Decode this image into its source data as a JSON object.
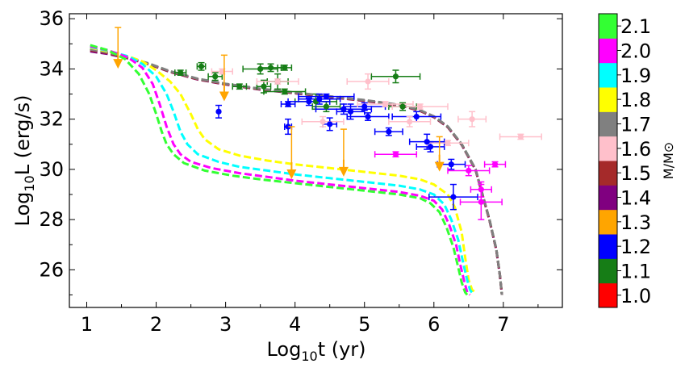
{
  "chart_data": {
    "type": "scatter",
    "xlabel_main": "Log",
    "xlabel_sub": "10",
    "xlabel_rest": "t (yr)",
    "ylabel_main": "Log",
    "ylabel_sub": "10",
    "ylabel_rest": "L (erg/s)",
    "xlim": [
      0.75,
      7.85
    ],
    "ylim": [
      24.5,
      36.2
    ],
    "xticks": [
      1,
      2,
      3,
      4,
      5,
      6,
      7
    ],
    "yticks": [
      26,
      28,
      30,
      32,
      34,
      36
    ],
    "colorbar": {
      "title": "M/M⊙",
      "levels": [
        {
          "value": "1.0",
          "color": "#ff0000"
        },
        {
          "value": "1.1",
          "color": "#167d16"
        },
        {
          "value": "1.2",
          "color": "#0000ff"
        },
        {
          "value": "1.3",
          "color": "#ffa500"
        },
        {
          "value": "1.4",
          "color": "#800080"
        },
        {
          "value": "1.5",
          "color": "#a52a2a"
        },
        {
          "value": "1.6",
          "color": "#ffc0cb"
        },
        {
          "value": "1.7",
          "color": "#808080"
        },
        {
          "value": "1.8",
          "color": "#ffff00"
        },
        {
          "value": "1.9",
          "color": "#00ffff"
        },
        {
          "value": "2.0",
          "color": "#ff00ff"
        },
        {
          "value": "2.1",
          "color": "#33ff33"
        }
      ]
    },
    "curves": [
      {
        "mass": "1.1",
        "color": "#167d16",
        "x": [
          1.05,
          1.3,
          1.6,
          1.9,
          2.2,
          2.6,
          3.0,
          3.5,
          4.0,
          4.5,
          5.0,
          5.4,
          5.6,
          5.8,
          6.0,
          6.2,
          6.4,
          6.6,
          6.7,
          6.8,
          6.9,
          6.95,
          6.98
        ],
        "y": [
          34.8,
          34.65,
          34.45,
          34.2,
          33.9,
          33.6,
          33.4,
          33.2,
          33.05,
          32.9,
          32.75,
          32.6,
          32.5,
          32.35,
          32.1,
          31.7,
          31.0,
          30.0,
          29.0,
          28.0,
          26.8,
          25.8,
          25.0
        ]
      },
      {
        "mass": "1.4",
        "color": "#800080",
        "x": [
          1.05,
          1.3,
          1.6,
          1.9,
          2.2,
          2.6,
          3.0,
          3.5,
          4.0,
          4.5,
          5.0,
          5.4,
          5.6,
          5.8,
          6.0,
          6.2,
          6.4,
          6.6,
          6.7,
          6.8,
          6.9,
          6.95,
          6.98
        ],
        "y": [
          34.7,
          34.6,
          34.42,
          34.18,
          33.88,
          33.58,
          33.38,
          33.18,
          33.03,
          32.88,
          32.73,
          32.58,
          32.48,
          32.33,
          32.08,
          31.68,
          30.98,
          29.98,
          28.98,
          27.98,
          26.78,
          25.8,
          25.0
        ]
      },
      {
        "mass": "1.5",
        "color": "#a52a2a",
        "x": [
          1.05,
          1.3,
          1.6,
          1.9,
          2.2,
          2.6,
          3.0,
          3.5,
          4.0,
          4.5,
          5.0,
          5.4,
          5.6,
          5.8,
          6.0,
          6.2,
          6.4,
          6.6,
          6.7,
          6.8,
          6.9,
          6.95,
          6.98
        ],
        "y": [
          34.75,
          34.63,
          34.44,
          34.19,
          33.89,
          33.59,
          33.39,
          33.19,
          33.04,
          32.89,
          32.74,
          32.59,
          32.49,
          32.34,
          32.09,
          31.69,
          30.99,
          29.99,
          28.99,
          27.99,
          26.79,
          25.8,
          25.0
        ]
      },
      {
        "mass": "1.7",
        "color": "#808080",
        "x": [
          1.05,
          1.3,
          1.6,
          1.9,
          2.2,
          2.6,
          3.0,
          3.5,
          4.0,
          4.5,
          5.0,
          5.4,
          5.6,
          5.8,
          6.0,
          6.2,
          6.4,
          6.6,
          6.7,
          6.8,
          6.9,
          6.95,
          6.98
        ],
        "y": [
          34.78,
          34.66,
          34.46,
          34.21,
          33.91,
          33.61,
          33.41,
          33.21,
          33.06,
          32.91,
          32.76,
          32.61,
          32.51,
          32.36,
          32.11,
          31.71,
          31.01,
          30.01,
          29.01,
          28.01,
          26.81,
          25.8,
          25.0
        ]
      },
      {
        "mass": "1.8",
        "color": "#ffff00",
        "x": [
          1.05,
          1.3,
          1.6,
          1.8,
          2.0,
          2.2,
          2.35,
          2.5,
          2.6,
          2.7,
          2.9,
          3.2,
          3.6,
          4.0,
          4.5,
          5.0,
          5.5,
          5.8,
          6.0,
          6.2,
          6.3,
          6.4,
          6.45,
          6.5,
          6.55,
          6.6
        ],
        "y": [
          34.85,
          34.7,
          34.5,
          34.3,
          33.95,
          33.5,
          33.0,
          32.2,
          31.6,
          31.2,
          30.8,
          30.55,
          30.35,
          30.2,
          30.05,
          29.9,
          29.75,
          29.6,
          29.4,
          29.0,
          28.5,
          27.5,
          26.5,
          25.6,
          25.2,
          25.1
        ]
      },
      {
        "mass": "1.9",
        "color": "#00ffff",
        "x": [
          1.05,
          1.3,
          1.6,
          1.8,
          2.0,
          2.15,
          2.25,
          2.35,
          2.45,
          2.6,
          2.9,
          3.2,
          3.6,
          4.0,
          4.5,
          5.0,
          5.5,
          5.8,
          6.0,
          6.15,
          6.25,
          6.35,
          6.42,
          6.47,
          6.52,
          6.56
        ],
        "y": [
          34.88,
          34.73,
          34.5,
          34.2,
          33.7,
          33.0,
          32.3,
          31.5,
          31.0,
          30.6,
          30.3,
          30.1,
          29.95,
          29.8,
          29.65,
          29.5,
          29.35,
          29.2,
          29.0,
          28.6,
          28.0,
          27.2,
          26.3,
          25.7,
          25.2,
          25.05
        ]
      },
      {
        "mass": "2.0",
        "color": "#ff00ff",
        "x": [
          1.05,
          1.3,
          1.6,
          1.8,
          1.95,
          2.05,
          2.15,
          2.25,
          2.35,
          2.5,
          2.8,
          3.2,
          3.6,
          4.0,
          4.5,
          5.0,
          5.5,
          5.8,
          6.0,
          6.12,
          6.22,
          6.32,
          6.38,
          6.44,
          6.48,
          6.52
        ],
        "y": [
          34.9,
          34.75,
          34.45,
          34.05,
          33.4,
          32.6,
          31.7,
          31.0,
          30.6,
          30.3,
          30.05,
          29.85,
          29.7,
          29.55,
          29.4,
          29.25,
          29.1,
          28.95,
          28.75,
          28.4,
          27.8,
          27.0,
          26.2,
          25.5,
          25.1,
          25.0
        ]
      },
      {
        "mass": "2.1",
        "color": "#33ff33",
        "x": [
          1.05,
          1.3,
          1.55,
          1.75,
          1.9,
          2.0,
          2.08,
          2.15,
          2.25,
          2.4,
          2.7,
          3.1,
          3.5,
          4.0,
          4.5,
          5.0,
          5.5,
          5.8,
          5.95,
          6.08,
          6.18,
          6.28,
          6.35,
          6.4,
          6.45,
          6.48
        ],
        "y": [
          34.95,
          34.75,
          34.4,
          33.8,
          33.0,
          32.2,
          31.5,
          31.0,
          30.6,
          30.25,
          29.95,
          29.75,
          29.6,
          29.45,
          29.3,
          29.15,
          29.0,
          28.85,
          28.65,
          28.3,
          27.7,
          26.9,
          26.1,
          25.5,
          25.1,
          25.0
        ]
      }
    ],
    "upper_limits": [
      {
        "x": 1.45,
        "y": 34.3,
        "color": "#ffa500"
      },
      {
        "x": 2.98,
        "y": 33.0,
        "color": "#ffa500"
      },
      {
        "x": 3.95,
        "y": 29.9,
        "color": "#ffa500"
      },
      {
        "x": 4.7,
        "y": 30.0,
        "color": "#ffa500"
      },
      {
        "x": 6.08,
        "y": 30.2,
        "color": "#ffa500"
      }
    ],
    "upper_limit_whiskers": [
      {
        "x": 1.45,
        "y_top": 35.65,
        "y_bottom": 34.5
      },
      {
        "x": 2.98,
        "y_top": 34.55,
        "y_bottom": 33.25
      },
      {
        "x": 3.95,
        "y_top": 31.7,
        "y_bottom": 30.2
      },
      {
        "x": 4.7,
        "y_top": 31.6,
        "y_bottom": 30.3
      },
      {
        "x": 6.08,
        "y_top": 31.3,
        "y_bottom": 30.5
      }
    ],
    "points": [
      {
        "x": 2.35,
        "y": 33.85,
        "xerr": 0.08,
        "yerr": 0.1,
        "color": "#167d16"
      },
      {
        "x": 2.65,
        "y": 34.1,
        "xerr": 0.06,
        "yerr": 0.15,
        "color": "#167d16"
      },
      {
        "x": 2.85,
        "y": 33.7,
        "xerr": 0.1,
        "yerr": 0.15,
        "color": "#167d16"
      },
      {
        "x": 3.2,
        "y": 33.3,
        "xerr": 0.1,
        "yerr": 0.1,
        "color": "#167d16"
      },
      {
        "x": 3.5,
        "y": 34.0,
        "xerr": 0.25,
        "yerr": 0.2,
        "color": "#167d16"
      },
      {
        "x": 3.55,
        "y": 33.3,
        "xerr": 0.1,
        "yerr": 0.25,
        "color": "#167d16"
      },
      {
        "x": 3.65,
        "y": 34.05,
        "xerr": 0.15,
        "yerr": 0.15,
        "color": "#167d16"
      },
      {
        "x": 3.75,
        "y": 33.5,
        "xerr": 0.15,
        "yerr": 0.3,
        "color": "#167d16"
      },
      {
        "x": 3.85,
        "y": 34.05,
        "xerr": 0.1,
        "yerr": 0.1,
        "color": "#167d16"
      },
      {
        "x": 3.85,
        "y": 33.1,
        "xerr": 0.3,
        "yerr": 0.1,
        "color": "#167d16"
      },
      {
        "x": 4.3,
        "y": 32.7,
        "xerr": 0.3,
        "yerr": 0.3,
        "color": "#167d16"
      },
      {
        "x": 4.45,
        "y": 32.5,
        "xerr": 0.2,
        "yerr": 0.2,
        "color": "#167d16"
      },
      {
        "x": 5.45,
        "y": 33.7,
        "xerr": 0.35,
        "yerr": 0.25,
        "color": "#167d16"
      },
      {
        "x": 5.55,
        "y": 32.5,
        "xerr": 0.2,
        "yerr": 0.15,
        "color": "#167d16"
      },
      {
        "x": 2.9,
        "y": 32.3,
        "xerr": 0.0,
        "yerr": 0.25,
        "color": "#0000ff"
      },
      {
        "x": 3.9,
        "y": 32.6,
        "xerr": 0.1,
        "yerr": 0.1,
        "color": "#0000ff"
      },
      {
        "x": 3.9,
        "y": 31.7,
        "xerr": 0.05,
        "yerr": 0.3,
        "color": "#0000ff"
      },
      {
        "x": 4.2,
        "y": 32.7,
        "xerr": 0.3,
        "yerr": 0.15,
        "color": "#0000ff"
      },
      {
        "x": 4.35,
        "y": 32.8,
        "xerr": 0.3,
        "yerr": 0.2,
        "color": "#0000ff"
      },
      {
        "x": 4.45,
        "y": 32.9,
        "xerr": 0.4,
        "yerr": 0.1,
        "color": "#0000ff"
      },
      {
        "x": 4.5,
        "y": 31.8,
        "xerr": 0.1,
        "yerr": 0.25,
        "color": "#0000ff"
      },
      {
        "x": 4.7,
        "y": 32.4,
        "xerr": 0.4,
        "yerr": 0.2,
        "color": "#0000ff"
      },
      {
        "x": 4.8,
        "y": 32.3,
        "xerr": 0.2,
        "yerr": 0.3,
        "color": "#0000ff"
      },
      {
        "x": 5.05,
        "y": 32.1,
        "xerr": 0.3,
        "yerr": 0.15,
        "color": "#0000ff"
      },
      {
        "x": 5.0,
        "y": 32.5,
        "xerr": 0.3,
        "yerr": 0.15,
        "color": "#0000ff"
      },
      {
        "x": 5.35,
        "y": 31.5,
        "xerr": 0.2,
        "yerr": 0.15,
        "color": "#0000ff"
      },
      {
        "x": 5.75,
        "y": 32.1,
        "xerr": 0.35,
        "yerr": 0.2,
        "color": "#0000ff"
      },
      {
        "x": 5.9,
        "y": 31.1,
        "xerr": 0.25,
        "yerr": 0.3,
        "color": "#0000ff"
      },
      {
        "x": 5.95,
        "y": 30.9,
        "xerr": 0.2,
        "yerr": 0.2,
        "color": "#0000ff"
      },
      {
        "x": 6.25,
        "y": 30.2,
        "xerr": 0.2,
        "yerr": 0.2,
        "color": "#0000ff"
      },
      {
        "x": 6.28,
        "y": 28.9,
        "xerr": 0.35,
        "yerr": 0.5,
        "color": "#0000ff"
      },
      {
        "x": 2.95,
        "y": 33.9,
        "xerr": 0.15,
        "yerr": 0.1,
        "color": "#ffc0cb"
      },
      {
        "x": 3.75,
        "y": 33.5,
        "xerr": 0.3,
        "yerr": 0.1,
        "color": "#ffc0cb"
      },
      {
        "x": 4.4,
        "y": 31.9,
        "xerr": 0.3,
        "yerr": 0.2,
        "color": "#ffc0cb"
      },
      {
        "x": 5.05,
        "y": 33.5,
        "xerr": 0.3,
        "yerr": 0.3,
        "color": "#ffc0cb"
      },
      {
        "x": 5.3,
        "y": 32.6,
        "xerr": 0.4,
        "yerr": 0.1,
        "color": "#ffc0cb"
      },
      {
        "x": 5.8,
        "y": 32.5,
        "xerr": 0.4,
        "yerr": 0.1,
        "color": "#ffc0cb"
      },
      {
        "x": 5.65,
        "y": 31.9,
        "xerr": 0.3,
        "yerr": 0.2,
        "color": "#ffc0cb"
      },
      {
        "x": 6.55,
        "y": 32.0,
        "xerr": 0.2,
        "yerr": 0.3,
        "color": "#ffc0cb"
      },
      {
        "x": 6.2,
        "y": 31.05,
        "xerr": 0.3,
        "yerr": 0.1,
        "color": "#ffc0cb"
      },
      {
        "x": 7.25,
        "y": 31.3,
        "xerr": 0.3,
        "yerr": 0.1,
        "color": "#ffc0cb"
      },
      {
        "x": 5.45,
        "y": 30.6,
        "xerr": 0.3,
        "yerr": 0.1,
        "color": "#ff00ff"
      },
      {
        "x": 6.5,
        "y": 29.95,
        "xerr": 0.3,
        "yerr": 0.2,
        "color": "#ff00ff"
      },
      {
        "x": 6.88,
        "y": 30.2,
        "xerr": 0.15,
        "yerr": 0.1,
        "color": "#ff00ff"
      },
      {
        "x": 6.68,
        "y": 29.2,
        "xerr": 0.15,
        "yerr": 0.3,
        "color": "#ff00ff"
      },
      {
        "x": 6.68,
        "y": 28.7,
        "xerr": 0.3,
        "yerr": 0.7,
        "color": "#ff00ff"
      }
    ]
  }
}
